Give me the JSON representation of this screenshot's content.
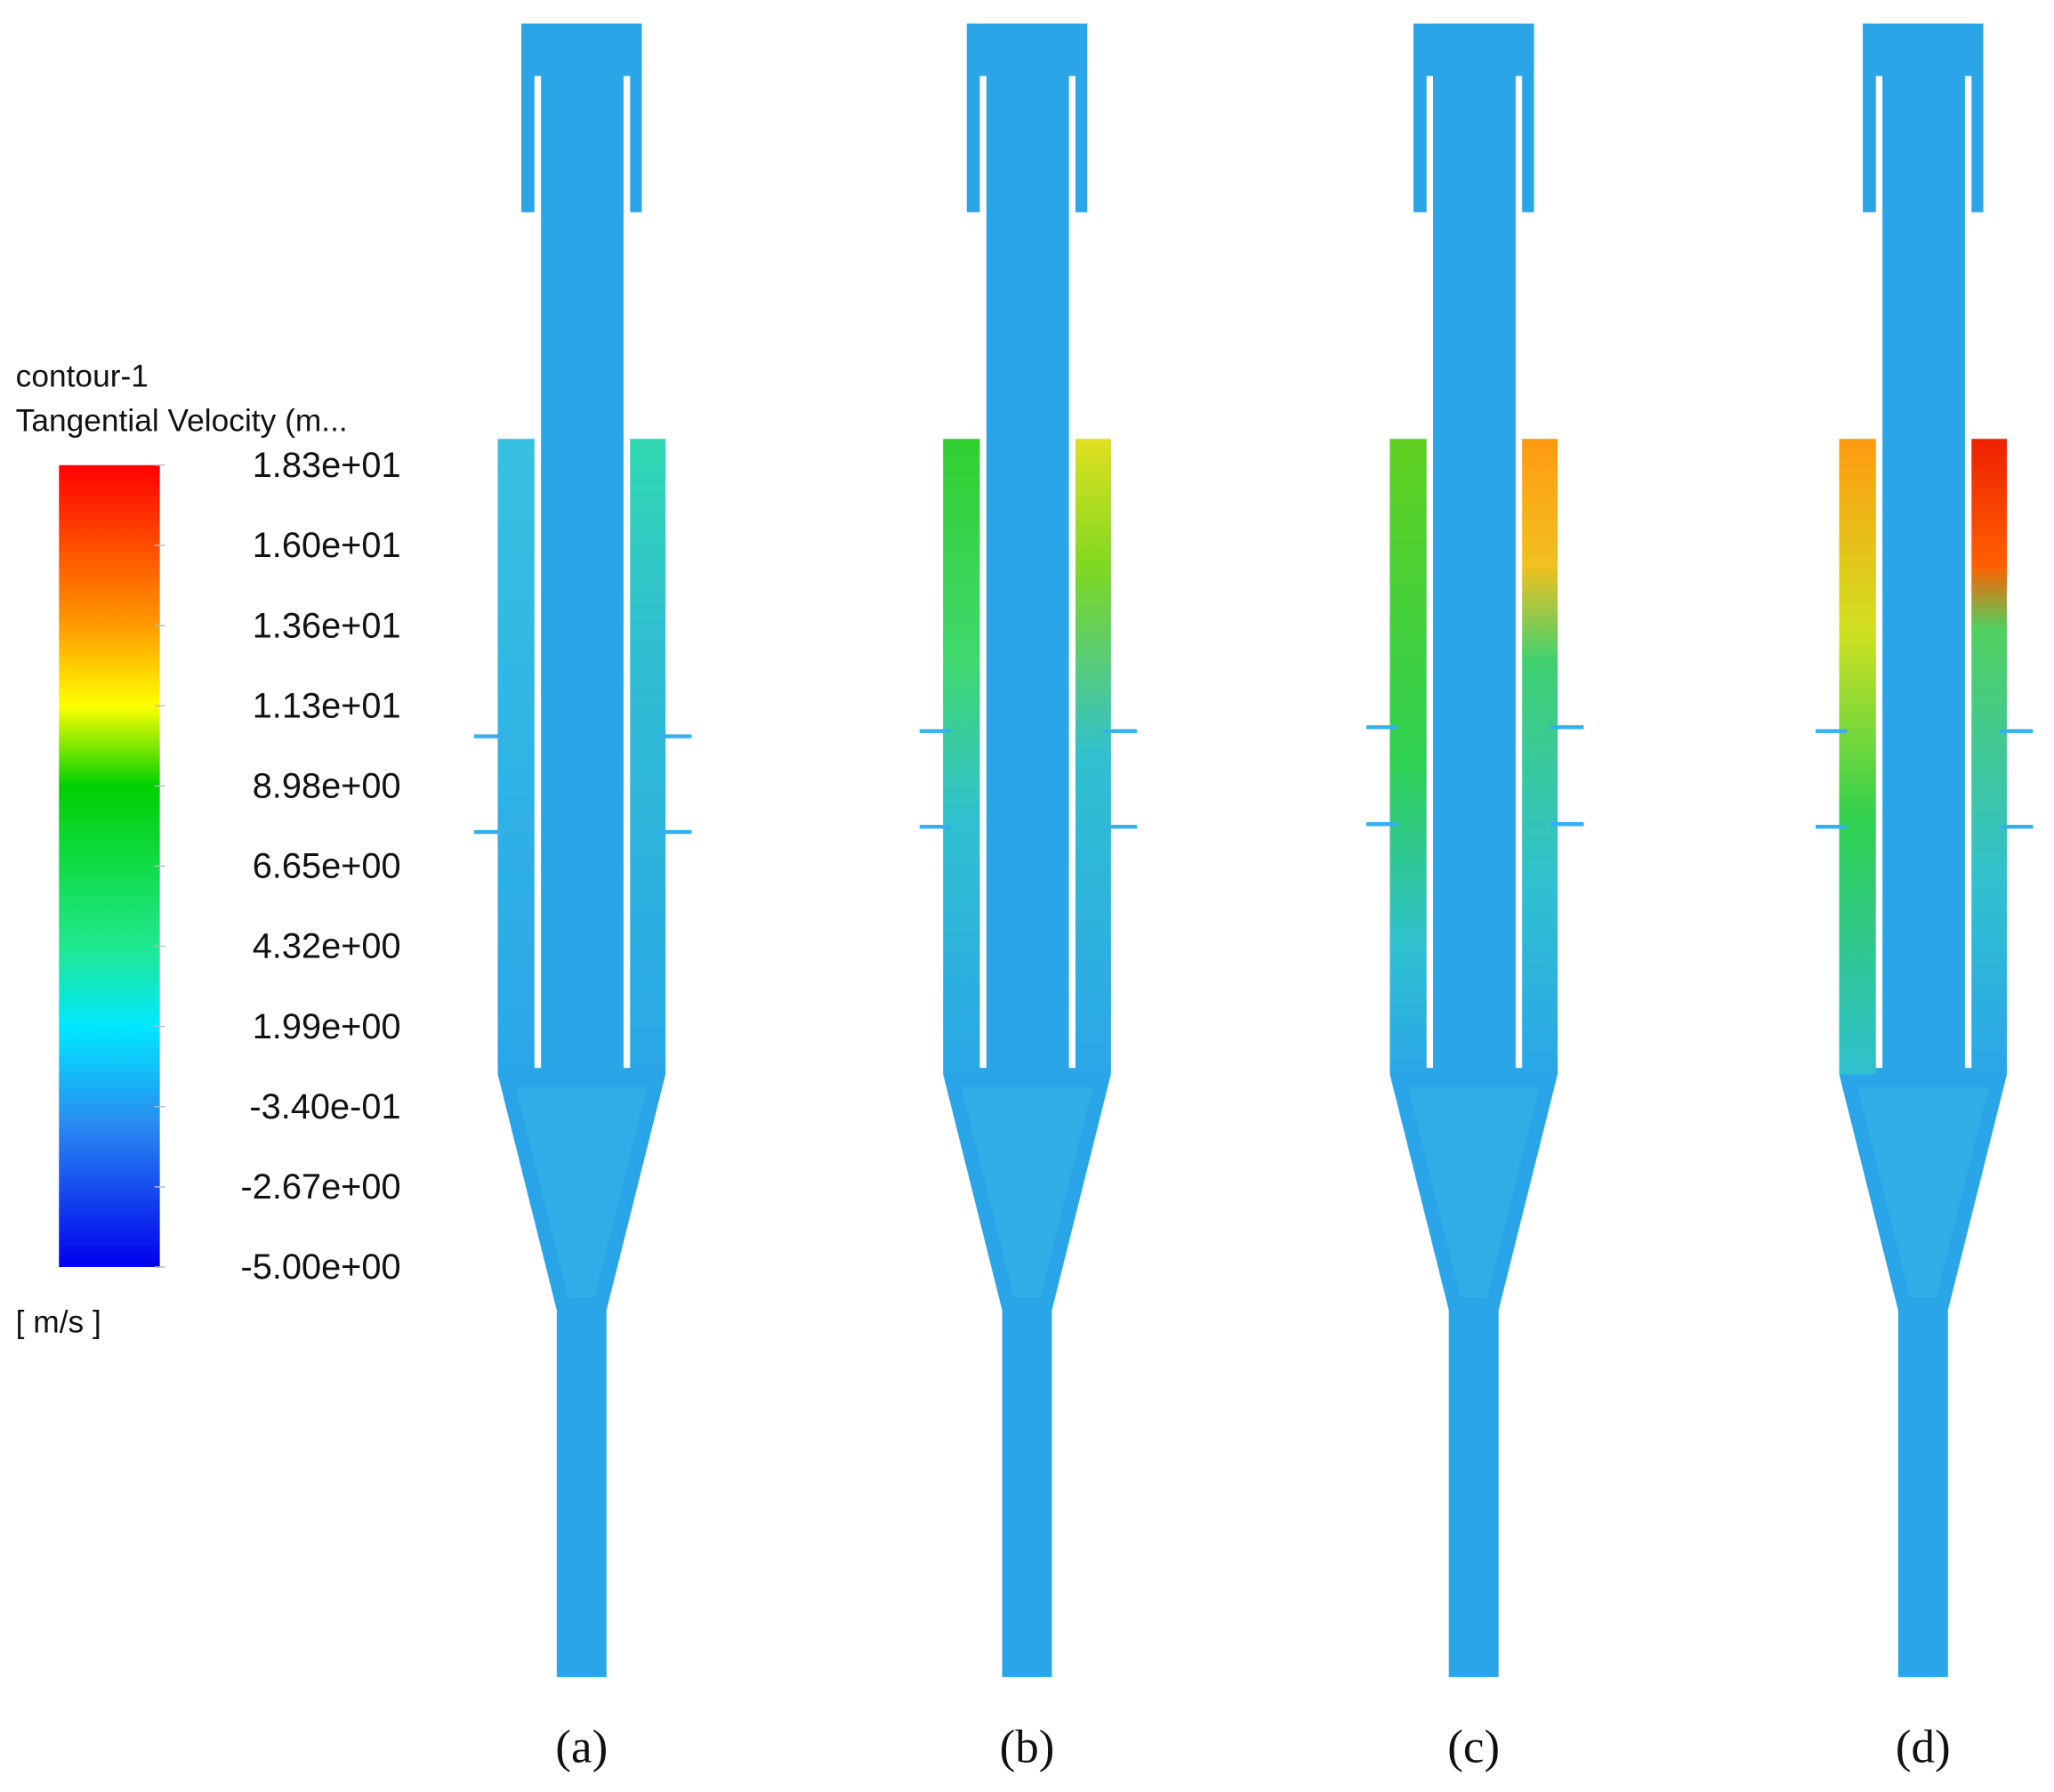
{
  "legend": {
    "name": "contour-1",
    "variable": "Tangential Velocity (m...",
    "ticks": [
      "1.83e+01",
      "1.60e+01",
      "1.36e+01",
      "1.13e+01",
      "8.98e+00",
      "6.65e+00",
      "4.32e+00",
      "1.99e+00",
      "-3.40e-01",
      "-2.67e+00",
      "-5.00e+00"
    ],
    "unit": "[ m/s ]"
  },
  "panels": [
    {
      "label": "(a)"
    },
    {
      "label": "(b)"
    },
    {
      "label": "(c)"
    },
    {
      "label": "(d)"
    }
  ]
}
